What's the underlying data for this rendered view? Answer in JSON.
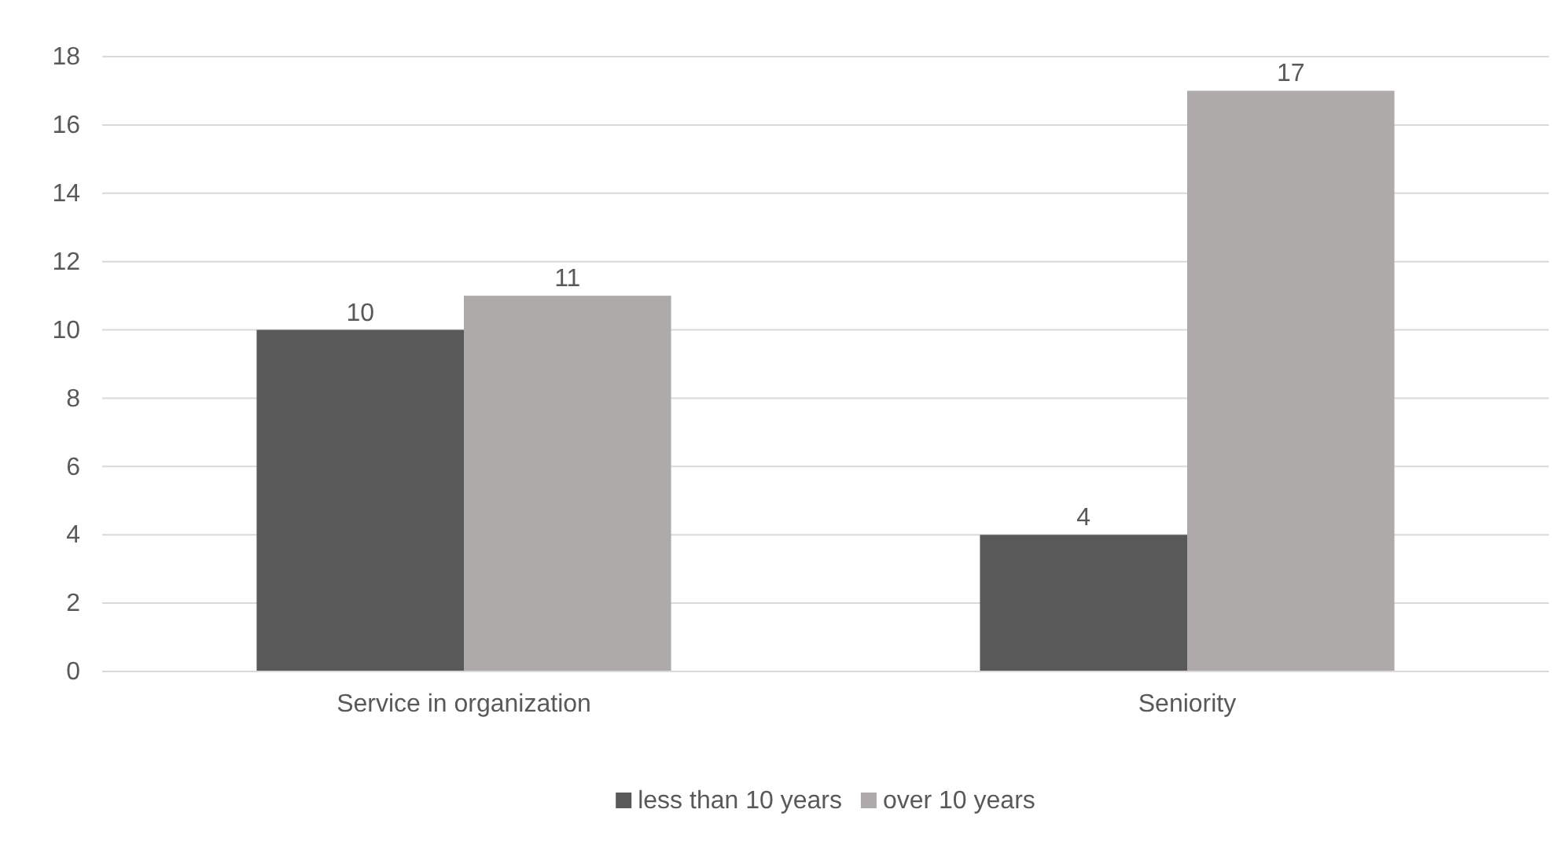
{
  "chart_data": {
    "type": "bar",
    "categories": [
      "Service in organization",
      "Seniority"
    ],
    "series": [
      {
        "name": "less than 10 years",
        "color": "#595959",
        "values": [
          10,
          4
        ]
      },
      {
        "name": "over 10 years",
        "color": "#aeaaaa",
        "values": [
          11,
          17
        ]
      }
    ],
    "ylim": [
      0,
      18
    ],
    "yticks": [
      0,
      2,
      4,
      6,
      8,
      10,
      12,
      14,
      16,
      18
    ],
    "grid": "y",
    "legend": "bottom",
    "data_labels": true
  }
}
